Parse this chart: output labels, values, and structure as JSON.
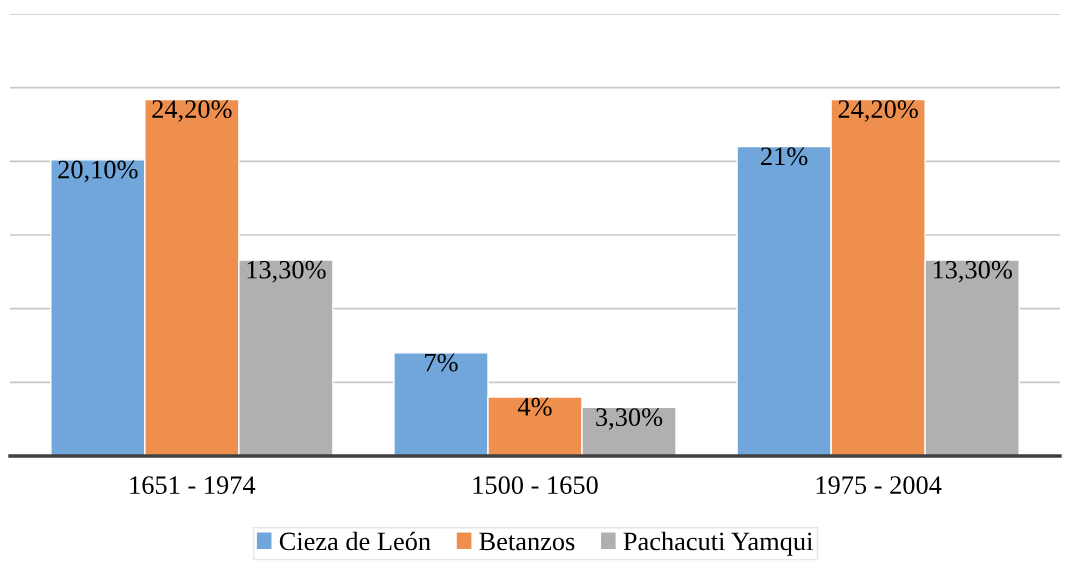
{
  "chart_data": {
    "type": "bar",
    "categories": [
      "1651 - 1974",
      "1500 - 1650",
      "1975 - 2004"
    ],
    "series": [
      {
        "name": "Cieza de León",
        "color": "#70a6da",
        "values": [
          20.1,
          7,
          21
        ],
        "value_labels": [
          "20,10%",
          "7%",
          "21%"
        ]
      },
      {
        "name": "Betanzos",
        "color": "#ef8f4e",
        "values": [
          24.2,
          4,
          24.2
        ],
        "value_labels": [
          "24,20%",
          "4%",
          "24,20%"
        ]
      },
      {
        "name": "Pachacuti Yamqui",
        "color": "#b0b0b0",
        "values": [
          13.3,
          3.3,
          13.3
        ],
        "value_labels": [
          "13,30%",
          "3,30%",
          "13,30%"
        ]
      }
    ],
    "ylim": [
      0,
      30
    ],
    "yticks": [
      {
        "value": 0,
        "label": null
      },
      {
        "value": 5,
        "label": null
      },
      {
        "value": 10,
        "label": null
      },
      {
        "value": 15,
        "label": null
      },
      {
        "value": 20,
        "label": null
      },
      {
        "value": 25,
        "label": null
      },
      {
        "value": 30,
        "label": null
      }
    ],
    "grid": "y",
    "legend": "bottom",
    "tick_labels": "x"
  }
}
